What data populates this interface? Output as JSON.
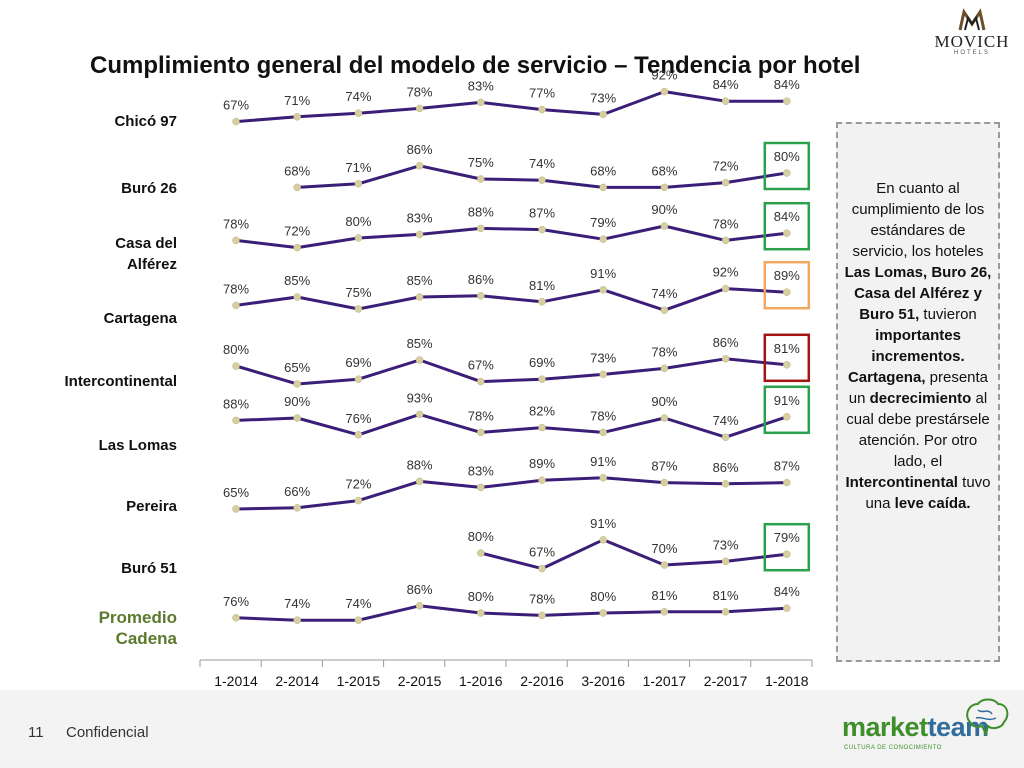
{
  "header": {
    "title": "Cumplimiento general del modelo de servicio – Tendencia por hotel",
    "logo_brand": "MOVICH",
    "logo_sub": "HOTELS"
  },
  "colors": {
    "line": "#3b1e78",
    "point": "#d8cfa0",
    "green_box": "#2aa14a",
    "orange_box": "#f0a860",
    "red_box": "#a31515",
    "avg_label": "#5b7a2e"
  },
  "chart_data": {
    "type": "line",
    "title": "Cumplimiento general del modelo de servicio – Tendencia por hotel",
    "categories": [
      "1-2014",
      "2-2014",
      "1-2015",
      "2-2015",
      "1-2016",
      "2-2016",
      "3-2016",
      "1-2017",
      "2-2017",
      "1-2018"
    ],
    "ylim": [
      60,
      95
    ],
    "series": [
      {
        "name": "Chicó 97",
        "values": [
          67,
          71,
          74,
          78,
          83,
          77,
          73,
          92,
          84,
          84
        ],
        "labels": [
          "67%",
          "71%",
          "74%",
          "78%",
          "83%",
          "77%",
          "73%",
          "92%",
          "84%",
          "84%"
        ],
        "highlight": null
      },
      {
        "name": "Buró 26",
        "values": [
          null,
          68,
          71,
          86,
          75,
          74,
          68,
          68,
          72,
          80
        ],
        "labels": [
          null,
          "68%",
          "71%",
          "86%",
          "75%",
          "74%",
          "68%",
          "68%",
          "72%",
          "80%"
        ],
        "highlight": "green"
      },
      {
        "name": "Casa del Alférez",
        "values": [
          78,
          72,
          80,
          83,
          88,
          87,
          79,
          90,
          78,
          84
        ],
        "labels": [
          "78%",
          "72%",
          "80%",
          "83%",
          "88%",
          "87%",
          "79%",
          "90%",
          "78%",
          "84%"
        ],
        "highlight": "green"
      },
      {
        "name": "Cartagena",
        "values": [
          78,
          85,
          75,
          85,
          86,
          81,
          91,
          74,
          92,
          89
        ],
        "labels": [
          "78%",
          "85%",
          "75%",
          "85%",
          "86%",
          "81%",
          "91%",
          "74%",
          "92%",
          "89%"
        ],
        "highlight": "orange"
      },
      {
        "name": "Intercontinental",
        "values": [
          80,
          65,
          69,
          85,
          67,
          69,
          73,
          78,
          86,
          81
        ],
        "labels": [
          "80%",
          "65%",
          "69%",
          "85%",
          "67%",
          "69%",
          "73%",
          "78%",
          "86%",
          "81%"
        ],
        "highlight": "red"
      },
      {
        "name": "Las Lomas",
        "values": [
          88,
          90,
          76,
          93,
          78,
          82,
          78,
          90,
          74,
          91
        ],
        "labels": [
          "88%",
          "90%",
          "76%",
          "93%",
          "78%",
          "82%",
          "78%",
          "90%",
          "74%",
          "91%"
        ],
        "highlight": "green"
      },
      {
        "name": "Pereira",
        "values": [
          65,
          66,
          72,
          88,
          83,
          89,
          91,
          87,
          86,
          87
        ],
        "labels": [
          "65%",
          "66%",
          "72%",
          "88%",
          "83%",
          "89%",
          "91%",
          "87%",
          "86%",
          "87%"
        ],
        "highlight": null
      },
      {
        "name": "Buró 51",
        "values": [
          null,
          null,
          null,
          null,
          80,
          67,
          91,
          70,
          73,
          79
        ],
        "labels": [
          null,
          null,
          null,
          null,
          "80%",
          "67%",
          "91%",
          "70%",
          "73%",
          "79%"
        ],
        "highlight": "green"
      },
      {
        "name": "Promedio Cadena",
        "values": [
          76,
          74,
          74,
          86,
          80,
          78,
          80,
          81,
          81,
          84
        ],
        "labels": [
          "76%",
          "74%",
          "74%",
          "86%",
          "80%",
          "78%",
          "80%",
          "81%",
          "81%",
          "84%"
        ],
        "highlight": null
      }
    ],
    "row_label_lines": [
      [
        "Chicó 97"
      ],
      [
        "Buró 26"
      ],
      [
        "Casa del",
        "Alférez"
      ],
      [
        "Cartagena"
      ],
      [
        "Intercontinental"
      ],
      [
        "Las Lomas"
      ],
      [
        "Pereira"
      ],
      [
        "Buró 51"
      ],
      [
        "Promedio",
        "Cadena"
      ]
    ]
  },
  "note": {
    "t1": "En cuanto al cumplimiento de los estándares de servicio, los hoteles ",
    "b1": "Las Lomas, Buro 26, Casa del Alférez y Buro 51,",
    "t2": " tuvieron ",
    "b2": "importantes incrementos. Cartagena,",
    "t3": " presenta un ",
    "b3": "decrecimiento",
    "t4": " al cual debe prestársele atención. Por otro lado, el ",
    "b4": "Intercontinental",
    "t5": " tuvo una ",
    "b5": "leve caída."
  },
  "footer": {
    "page_number": "11",
    "confidential": "Confidencial",
    "brand_part1": "market",
    "brand_part2": "team",
    "brand_tagline": "CULTURA DE CONOCIMIENTO"
  }
}
